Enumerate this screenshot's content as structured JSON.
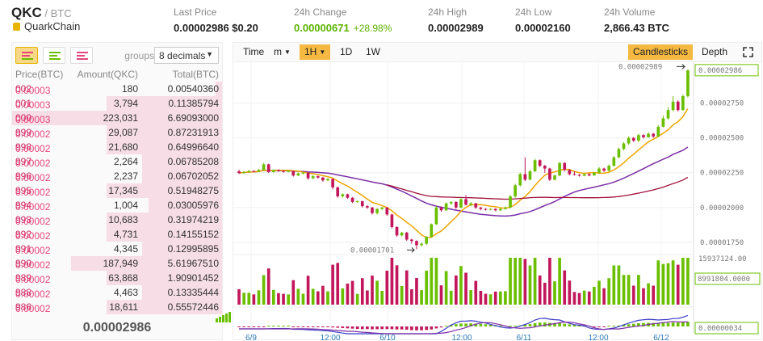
{
  "header": {
    "symbol": "QKC",
    "pair": " / BTC",
    "coin_name": "QuarkChain",
    "last_price_label": "Last Price",
    "last_price": "0.00002986 $0.20",
    "change_label": "24h Change",
    "change": "0.00000671",
    "change_pct": "+28.98%",
    "high_label": "24h High",
    "high": "0.00002989",
    "low_label": "24h Low",
    "low": "0.00002160",
    "volume_label": "24h Volume",
    "volume": "2,866.43 BTC"
  },
  "orderbook": {
    "groups_label": "groups",
    "decimals": "8 decimals",
    "col_price": "Price(BTC)",
    "col_amount": "Amount(QKC)",
    "col_total": "Total(BTC)",
    "rows": [
      {
        "p1": "0.00003",
        "p2": "002",
        "amount": "180",
        "total": "0.00540360",
        "fill": 0.03
      },
      {
        "p1": "0.00003",
        "p2": "001",
        "amount": "3,794",
        "total": "0.11385794",
        "fill": 0.55
      },
      {
        "p1": "0.00003",
        "p2": "000",
        "amount": "223,031",
        "total": "6.69093000",
        "fill": 1.0
      },
      {
        "p1": "0.00002",
        "p2": "999",
        "amount": "29,087",
        "total": "0.87231913",
        "fill": 0.55
      },
      {
        "p1": "0.00002",
        "p2": "998",
        "amount": "21,680",
        "total": "0.64996640",
        "fill": 0.55
      },
      {
        "p1": "0.00002",
        "p2": "997",
        "amount": "2,264",
        "total": "0.06785208",
        "fill": 0.38
      },
      {
        "p1": "0.00002",
        "p2": "996",
        "amount": "2,237",
        "total": "0.06702052",
        "fill": 0.38
      },
      {
        "p1": "0.00002",
        "p2": "995",
        "amount": "17,345",
        "total": "0.51948275",
        "fill": 0.55
      },
      {
        "p1": "0.00002",
        "p2": "994",
        "amount": "1,004",
        "total": "0.03005976",
        "fill": 0.35
      },
      {
        "p1": "0.00002",
        "p2": "993",
        "amount": "10,683",
        "total": "0.31974219",
        "fill": 0.55
      },
      {
        "p1": "0.00002",
        "p2": "992",
        "amount": "4,731",
        "total": "0.14155152",
        "fill": 0.55
      },
      {
        "p1": "0.00002",
        "p2": "991",
        "amount": "4,345",
        "total": "0.12995895",
        "fill": 0.38
      },
      {
        "p1": "0.00002",
        "p2": "990",
        "amount": "187,949",
        "total": "5.61967510",
        "fill": 0.72
      },
      {
        "p1": "0.00002",
        "p2": "989",
        "amount": "63,868",
        "total": "1.90901452",
        "fill": 0.55
      },
      {
        "p1": "0.00002",
        "p2": "988",
        "amount": "4,463",
        "total": "0.13335444",
        "fill": 0.38
      },
      {
        "p1": "0.00002",
        "p2": "986",
        "amount": "18,611",
        "total": "0.55572446",
        "fill": 0.55
      }
    ],
    "last_price": "0.00002986"
  },
  "toolbar": {
    "time": "Time",
    "minutes": "m",
    "interval_1h": "1H",
    "interval_1d": "1D",
    "interval_1w": "1W",
    "candlesticks": "Candlesticks",
    "depth": "Depth"
  },
  "chart": {
    "price_ticks": [
      "0.00002750",
      "0.00002500",
      "0.00002250",
      "0.00002000",
      "0.00001750"
    ],
    "current_price_tag": "0.00002986",
    "high_annotation": "0.00002989",
    "low_annotation": "0.00001701",
    "volume_max_label": "15937124.00",
    "volume_tag": "8991804.0000",
    "macd_tag": "0.00000034",
    "x_labels": [
      "6/9",
      "12:00",
      "6/10",
      "12:00",
      "6/11",
      "12:00",
      "6/12"
    ]
  },
  "chart_data": {
    "type": "candlestick",
    "interval": "1H",
    "y_range": [
      1.68e-05,
      3.02e-05
    ],
    "x_labels": [
      "6/9",
      "12:00",
      "6/10",
      "12:00",
      "6/11",
      "12:00",
      "6/12"
    ],
    "candles": [
      [
        2260,
        2248,
        2272,
        2240
      ],
      [
        2248,
        2255,
        2262,
        2242
      ],
      [
        2255,
        2262,
        2270,
        2250
      ],
      [
        2262,
        2258,
        2268,
        2252
      ],
      [
        2258,
        2270,
        2278,
        2254
      ],
      [
        2270,
        2310,
        2320,
        2262
      ],
      [
        2310,
        2255,
        2315,
        2248
      ],
      [
        2255,
        2268,
        2274,
        2250
      ],
      [
        2268,
        2262,
        2275,
        2255
      ],
      [
        2262,
        2258,
        2270,
        2250
      ],
      [
        2258,
        2262,
        2268,
        2252
      ],
      [
        2262,
        2230,
        2266,
        2222
      ],
      [
        2230,
        2245,
        2252,
        2225
      ],
      [
        2245,
        2250,
        2256,
        2238
      ],
      [
        2250,
        2210,
        2254,
        2200
      ],
      [
        2210,
        2225,
        2232,
        2205
      ],
      [
        2225,
        2215,
        2230,
        2208
      ],
      [
        2215,
        2195,
        2220,
        2185
      ],
      [
        2195,
        2205,
        2212,
        2190
      ],
      [
        2205,
        2145,
        2210,
        2130
      ],
      [
        2145,
        2080,
        2150,
        2070
      ],
      [
        2080,
        2095,
        2102,
        2072
      ],
      [
        2095,
        2070,
        2100,
        2062
      ],
      [
        2070,
        2040,
        2076,
        2032
      ],
      [
        2040,
        2045,
        2052,
        2035
      ],
      [
        2045,
        2010,
        2050,
        2000
      ],
      [
        2010,
        2000,
        2018,
        1990
      ],
      [
        2000,
        1960,
        2005,
        1950
      ],
      [
        1960,
        1990,
        1995,
        1950
      ],
      [
        1990,
        2000,
        2005,
        1980
      ],
      [
        2000,
        1950,
        2004,
        1940
      ],
      [
        1950,
        1860,
        1955,
        1850
      ],
      [
        1860,
        1800,
        1866,
        1790
      ],
      [
        1800,
        1820,
        1826,
        1792
      ],
      [
        1820,
        1770,
        1826,
        1760
      ],
      [
        1770,
        1760,
        1776,
        1740
      ],
      [
        1760,
        1730,
        1765,
        1701
      ],
      [
        1730,
        1740,
        1750,
        1720
      ],
      [
        1740,
        1790,
        1796,
        1732
      ],
      [
        1790,
        1880,
        1886,
        1782
      ],
      [
        1880,
        2000,
        2010,
        1875
      ],
      [
        2000,
        1980,
        2008,
        1970
      ],
      [
        1980,
        2030,
        2036,
        1975
      ],
      [
        2030,
        2040,
        2046,
        2020
      ],
      [
        2040,
        2000,
        2046,
        1990
      ],
      [
        2000,
        2060,
        2066,
        1995
      ],
      [
        2060,
        2020,
        2090,
        2015
      ],
      [
        2020,
        2030,
        2040,
        2010
      ],
      [
        2030,
        2000,
        2034,
        1990
      ],
      [
        2000,
        1990,
        2005,
        1980
      ],
      [
        1990,
        1985,
        1996,
        1978
      ],
      [
        1985,
        1990,
        1994,
        1980
      ],
      [
        1990,
        1980,
        1994,
        1974
      ],
      [
        1980,
        1990,
        1996,
        1975
      ],
      [
        1990,
        2000,
        2008,
        1985
      ],
      [
        2000,
        2080,
        2090,
        1995
      ],
      [
        2080,
        2160,
        2170,
        2070
      ],
      [
        2160,
        2240,
        2250,
        2150
      ],
      [
        2240,
        2200,
        2360,
        2190
      ],
      [
        2200,
        2260,
        2270,
        2195
      ],
      [
        2260,
        2340,
        2350,
        2255
      ],
      [
        2340,
        2300,
        2346,
        2290
      ],
      [
        2300,
        2280,
        2306,
        2250
      ],
      [
        2280,
        2200,
        2286,
        2190
      ],
      [
        2200,
        2230,
        2236,
        2195
      ],
      [
        2230,
        2320,
        2326,
        2225
      ],
      [
        2320,
        2270,
        2326,
        2260
      ],
      [
        2270,
        2240,
        2276,
        2230
      ],
      [
        2240,
        2235,
        2260,
        2230
      ],
      [
        2235,
        2228,
        2240,
        2222
      ],
      [
        2228,
        2240,
        2246,
        2224
      ],
      [
        2240,
        2230,
        2246,
        2225
      ],
      [
        2230,
        2250,
        2256,
        2228
      ],
      [
        2250,
        2280,
        2290,
        2245
      ],
      [
        2280,
        2265,
        2286,
        2255
      ],
      [
        2265,
        2300,
        2310,
        2260
      ],
      [
        2300,
        2360,
        2370,
        2295
      ],
      [
        2360,
        2420,
        2430,
        2355
      ],
      [
        2420,
        2460,
        2470,
        2410
      ],
      [
        2460,
        2500,
        2510,
        2450
      ],
      [
        2500,
        2480,
        2506,
        2470
      ],
      [
        2480,
        2520,
        2530,
        2470
      ],
      [
        2520,
        2505,
        2526,
        2495
      ],
      [
        2505,
        2530,
        2540,
        2500
      ],
      [
        2530,
        2510,
        2536,
        2500
      ],
      [
        2510,
        2580,
        2590,
        2505
      ],
      [
        2580,
        2640,
        2660,
        2575
      ],
      [
        2640,
        2700,
        2720,
        2630
      ],
      [
        2700,
        2760,
        2800,
        2690
      ],
      [
        2760,
        2700,
        2770,
        2690
      ],
      [
        2700,
        2800,
        2810,
        2695
      ],
      [
        2800,
        2986,
        2989,
        2790
      ]
    ],
    "candle_scale": 1e-08
  }
}
